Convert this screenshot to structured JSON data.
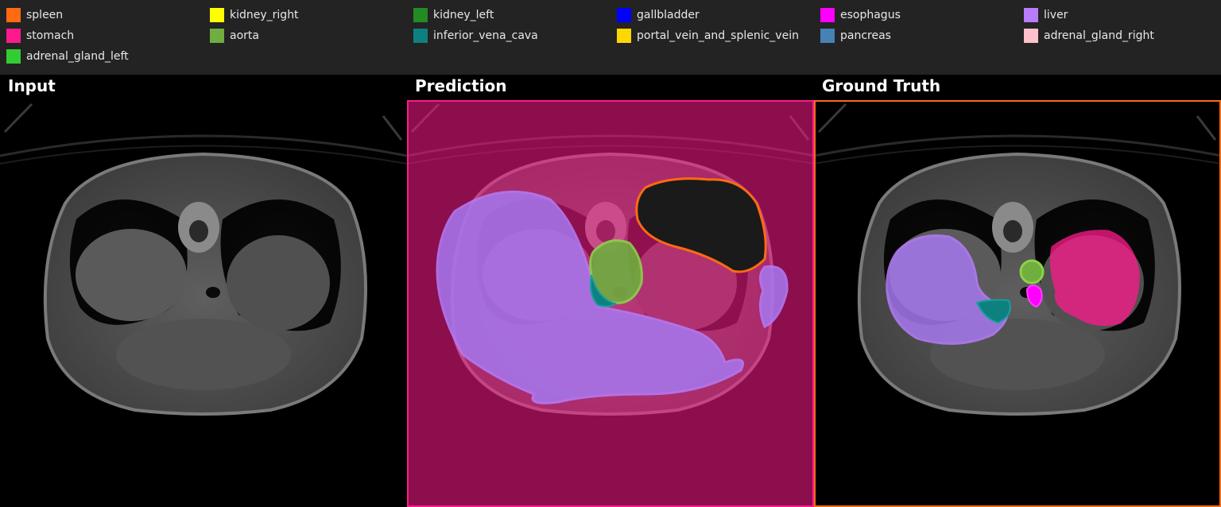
{
  "legend": [
    {
      "label": "spleen",
      "color": "#ff6a13"
    },
    {
      "label": "kidney_right",
      "color": "#ffff00"
    },
    {
      "label": "kidney_left",
      "color": "#228b22"
    },
    {
      "label": "gallbladder",
      "color": "#0000ff"
    },
    {
      "label": "esophagus",
      "color": "#ff00ff"
    },
    {
      "label": "liver",
      "color": "#b77dfc"
    },
    {
      "label": "stomach",
      "color": "#ff1a8c"
    },
    {
      "label": "aorta",
      "color": "#6fae3f"
    },
    {
      "label": "inferior_vena_cava",
      "color": "#0f8080"
    },
    {
      "label": "portal_vein_and_splenic_vein",
      "color": "#ffd700"
    },
    {
      "label": "pancreas",
      "color": "#4682b4"
    },
    {
      "label": "adrenal_gland_right",
      "color": "#ffc0cb"
    },
    {
      "label": "adrenal_gland_left",
      "color": "#32cd32"
    }
  ],
  "panels": {
    "input": {
      "title": "Input"
    },
    "prediction": {
      "title": "Prediction",
      "border_color": "#ff1a8c"
    },
    "ground_truth": {
      "title": "Ground Truth",
      "border_color": "#ff6a13"
    }
  }
}
